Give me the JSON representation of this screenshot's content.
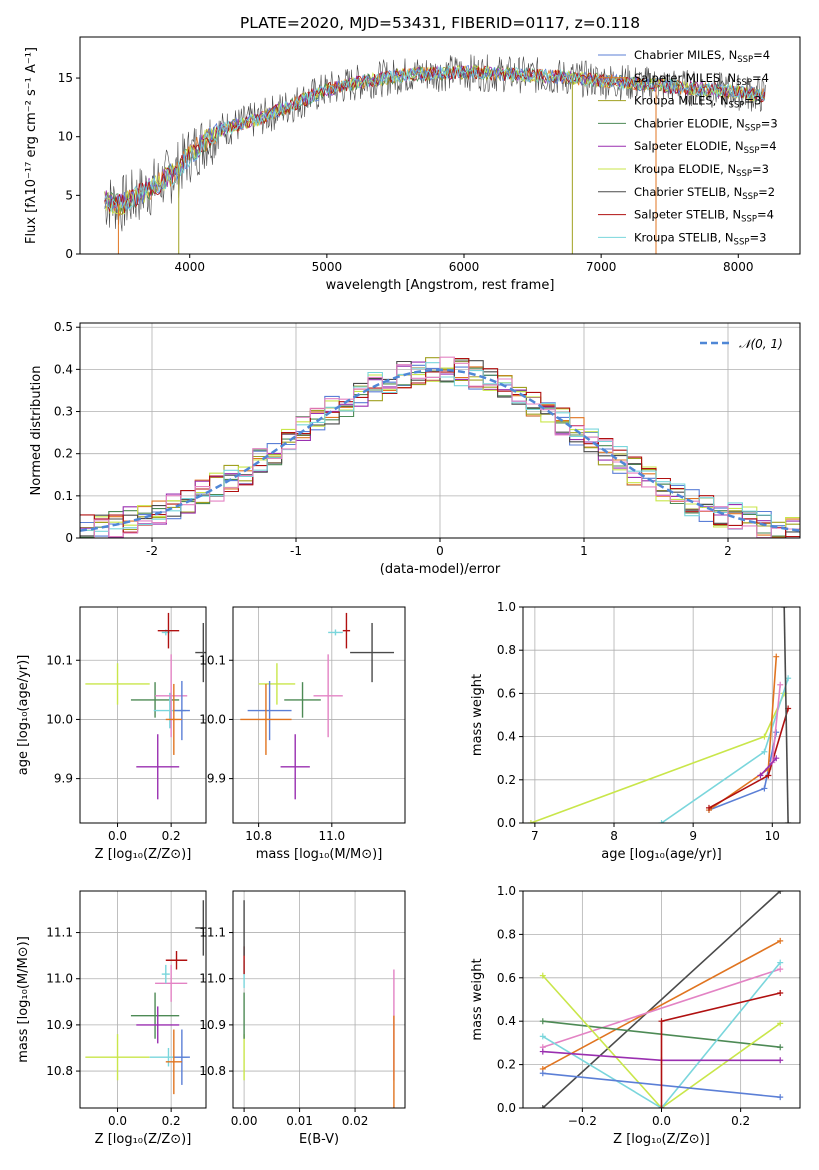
{
  "title": "PLATE=2020, MJD=53431, FIBERID=0117, z=0.118",
  "colors": {
    "Chabrier MILES": "#5b7fd6",
    "Salpeter MILES": "#e07420",
    "Kroupa MILES": "#a0a020",
    "Chabrier ELODIE": "#4d8a55",
    "Salpeter ELODIE": "#9a2fb0",
    "Kroupa ELODIE": "#c9e64a",
    "Chabrier STELIB": "#4a4a4a",
    "Salpeter STELIB": "#b01010",
    "Kroupa STELIB": "#7ad6dc",
    "pink": "#e383c4",
    "gauss": "#4f87d6"
  },
  "legend_spectrum": [
    {
      "key": "Chabrier MILES",
      "label": "Chabrier MILES, N",
      "n": "=4"
    },
    {
      "key": "Salpeter MILES",
      "label": "Salpeter MILES, N",
      "n": "=4"
    },
    {
      "key": "Kroupa MILES",
      "label": "Kroupa MILES, N",
      "n": "=3"
    },
    {
      "key": "Chabrier ELODIE",
      "label": "Chabrier ELODIE, N",
      "n": "=3"
    },
    {
      "key": "Salpeter ELODIE",
      "label": "Salpeter ELODIE, N",
      "n": "=4"
    },
    {
      "key": "Kroupa ELODIE",
      "label": "Kroupa ELODIE, N",
      "n": "=3"
    },
    {
      "key": "Chabrier STELIB",
      "label": "Chabrier STELIB, N",
      "n": "=2"
    },
    {
      "key": "Salpeter STELIB",
      "label": "Salpeter STELIB, N",
      "n": "=4"
    },
    {
      "key": "Kroupa STELIB",
      "label": "Kroupa STELIB, N",
      "n": "=3"
    }
  ],
  "legend_sub": "SSP",
  "chart_data": [
    {
      "type": "line",
      "ylabel": "Flux [fλ10⁻¹⁷ erg cm⁻² s⁻¹ A⁻¹]",
      "xlabel": "wavelength [Angstrom, rest frame]",
      "xlim": [
        3200,
        8450
      ],
      "ylim": [
        0,
        18.5
      ],
      "xticks": [
        4000,
        5000,
        6000,
        7000,
        8000
      ],
      "yticks": [
        0,
        5,
        10,
        15
      ],
      "continuum": [
        [
          3380,
          4.5
        ],
        [
          3500,
          4.2
        ],
        [
          3700,
          5.5
        ],
        [
          3900,
          7
        ],
        [
          4000,
          8.5
        ],
        [
          4200,
          10.5
        ],
        [
          4500,
          11.5
        ],
        [
          4700,
          12.5
        ],
        [
          5000,
          14
        ],
        [
          5300,
          14.8
        ],
        [
          5600,
          15.3
        ],
        [
          6000,
          15.5
        ],
        [
          6400,
          15.3
        ],
        [
          6800,
          15
        ],
        [
          7200,
          14.6
        ],
        [
          7600,
          14.2
        ],
        [
          8000,
          13.8
        ],
        [
          8200,
          13.5
        ]
      ]
    },
    {
      "type": "line",
      "ylabel": "Normed distribution",
      "xlabel": "(data-model)/error",
      "xlim": [
        -2.5,
        2.5
      ],
      "ylim": [
        0,
        0.51
      ],
      "xticks": [
        -2,
        -1,
        0,
        1,
        2
      ],
      "yticks": [
        0,
        0.1,
        0.2,
        0.3,
        0.4,
        0.5
      ],
      "legend": "𝒩(0, 1)"
    },
    {
      "type": "scatter",
      "ylabel": "age  [log₁₀(age/yr)]",
      "xlabel": "Z [log₁₀(Z/Z⊙)]",
      "xlim": [
        -0.14,
        0.33
      ],
      "ylim": [
        9.825,
        10.19
      ],
      "xticks": [
        0,
        0.2
      ],
      "xticklabels": [
        "0.0",
        "0.2"
      ],
      "yticks": [
        9.9,
        10,
        10.1
      ],
      "yticklabels": [
        "9.9",
        "10.0",
        "10.1"
      ],
      "points": [
        {
          "key": "Kroupa ELODIE",
          "x": 0,
          "xe": 0.12,
          "y": 10.06,
          "ye": 0.035
        },
        {
          "key": "Chabrier ELODIE",
          "x": 0.14,
          "xe": 0.09,
          "y": 10.033,
          "ye": 0.03
        },
        {
          "key": "Salpeter ELODIE",
          "x": 0.15,
          "xe": 0.08,
          "y": 9.92,
          "ye": 0.055
        },
        {
          "key": "Kroupa STELIB",
          "x": 0.195,
          "xe": 0.06,
          "y": 10.015,
          "ye": 0.03
        },
        {
          "key": "pink",
          "x": 0.2,
          "xe": 0.06,
          "y": 10.04,
          "ye": 0.07
        },
        {
          "key": "Chabrier MILES",
          "x": 0.24,
          "xe": 0.03,
          "y": 10.015,
          "ye": 0.05
        },
        {
          "key": "Salpeter MILES",
          "x": 0.21,
          "xe": 0.03,
          "y": 10.0,
          "ye": 0.06
        },
        {
          "key": "Kroupa STELIB",
          "x": 0.18,
          "xe": 0.015,
          "y": 10.147,
          "ye": 0.005
        },
        {
          "key": "Salpeter STELIB",
          "x": 0.19,
          "xe": 0.04,
          "y": 10.15,
          "ye": 0.03
        },
        {
          "key": "Chabrier STELIB",
          "x": 0.32,
          "xe": 0.03,
          "y": 10.113,
          "ye": 0.05
        }
      ]
    },
    {
      "type": "scatter",
      "xlabel": "mass [log₁₀(M/M⊙)]",
      "xlim": [
        10.73,
        11.2
      ],
      "ylim": [
        9.825,
        10.19
      ],
      "xticks": [
        10.8,
        11
      ],
      "xticklabels": [
        "10.8",
        "11.0"
      ],
      "yticks": [
        9.9,
        10,
        10.1
      ],
      "yticklabels": [
        "9.9",
        "10.0",
        "10.1"
      ],
      "points": [
        {
          "key": "Kroupa ELODIE",
          "x": 10.85,
          "xe": 0.05,
          "y": 10.06,
          "ye": 0.035
        },
        {
          "key": "Chabrier ELODIE",
          "x": 10.92,
          "xe": 0.05,
          "y": 10.033,
          "ye": 0.03
        },
        {
          "key": "Salpeter ELODIE",
          "x": 10.9,
          "xe": 0.04,
          "y": 9.92,
          "ye": 0.055
        },
        {
          "key": "Chabrier MILES",
          "x": 10.83,
          "xe": 0.06,
          "y": 10.015,
          "ye": 0.05
        },
        {
          "key": "Salpeter MILES",
          "x": 10.82,
          "xe": 0.07,
          "y": 10.0,
          "ye": 0.06
        },
        {
          "key": "pink",
          "x": 10.99,
          "xe": 0.04,
          "y": 10.04,
          "ye": 0.07
        },
        {
          "key": "Kroupa STELIB",
          "x": 11.01,
          "xe": 0.02,
          "y": 10.147,
          "ye": 0.005
        },
        {
          "key": "Salpeter STELIB",
          "x": 11.04,
          "xe": 0.01,
          "y": 10.15,
          "ye": 0.03
        },
        {
          "key": "Chabrier STELIB",
          "x": 11.11,
          "xe": 0.06,
          "y": 10.113,
          "ye": 0.05
        }
      ]
    },
    {
      "type": "line",
      "ylabel": "mass weight",
      "xlabel": "age  [log₁₀(age/yr)]",
      "xlim": [
        6.85,
        10.35
      ],
      "ylim": [
        0,
        1
      ],
      "xticks": [
        7,
        8,
        9,
        10
      ],
      "yticks": [
        0,
        0.2,
        0.4,
        0.6,
        0.8,
        1
      ],
      "yticklabels": [
        "0.0",
        "0.2",
        "0.4",
        "0.6",
        "0.8",
        "1.0"
      ],
      "series": [
        {
          "key": "Kroupa ELODIE",
          "pts": [
            [
              6.95,
              0
            ],
            [
              9.9,
              0.4
            ],
            [
              10.15,
              0.6
            ]
          ]
        },
        {
          "key": "Kroupa STELIB",
          "pts": [
            [
              8.6,
              0
            ],
            [
              9.9,
              0.33
            ],
            [
              10.2,
              0.67
            ]
          ]
        },
        {
          "key": "Chabrier MILES",
          "pts": [
            [
              9.2,
              0.06
            ],
            [
              9.9,
              0.16
            ],
            [
              10.05,
              0.42
            ]
          ]
        },
        {
          "key": "Salpeter MILES",
          "pts": [
            [
              9.2,
              0.06
            ],
            [
              9.95,
              0.25
            ],
            [
              10.05,
              0.77
            ]
          ]
        },
        {
          "key": "Salpeter STELIB",
          "pts": [
            [
              9.2,
              0.07
            ],
            [
              9.95,
              0.22
            ],
            [
              10.2,
              0.53
            ]
          ]
        },
        {
          "key": "pink",
          "pts": [
            [
              10.0,
              0.28
            ],
            [
              10.1,
              0.64
            ]
          ]
        },
        {
          "key": "Salpeter ELODIE",
          "pts": [
            [
              9.85,
              0.22
            ],
            [
              10.05,
              0.3
            ]
          ]
        },
        {
          "key": "Chabrier STELIB",
          "pts": [
            [
              10.15,
              1.0
            ],
            [
              10.2,
              0
            ]
          ]
        }
      ]
    },
    {
      "type": "scatter",
      "ylabel": "mass [log₁₀(M/M⊙)]",
      "xlabel": "Z [log₁₀(Z/Z⊙)]",
      "xlim": [
        -0.14,
        0.33
      ],
      "ylim": [
        10.72,
        11.19
      ],
      "xticks": [
        0,
        0.2
      ],
      "xticklabels": [
        "0.0",
        "0.2"
      ],
      "yticks": [
        10.8,
        10.9,
        11,
        11.1
      ],
      "yticklabels": [
        "10.8",
        "10.9",
        "11.0",
        "11.1"
      ],
      "points": [
        {
          "key": "Kroupa ELODIE",
          "x": 0,
          "xe": 0.12,
          "y": 10.83,
          "ye": 0.05
        },
        {
          "key": "Chabrier ELODIE",
          "x": 0.14,
          "xe": 0.09,
          "y": 10.92,
          "ye": 0.05
        },
        {
          "key": "Salpeter ELODIE",
          "x": 0.15,
          "xe": 0.08,
          "y": 10.9,
          "ye": 0.04
        },
        {
          "key": "Kroupa STELIB",
          "x": 0.19,
          "xe": 0.07,
          "y": 10.83,
          "ye": 0.02
        },
        {
          "key": "pink",
          "x": 0.2,
          "xe": 0.06,
          "y": 10.99,
          "ye": 0.04
        },
        {
          "key": "Chabrier MILES",
          "x": 0.24,
          "xe": 0.03,
          "y": 10.83,
          "ye": 0.06
        },
        {
          "key": "Salpeter MILES",
          "x": 0.21,
          "xe": 0.03,
          "y": 10.82,
          "ye": 0.07
        },
        {
          "key": "Kroupa STELIB",
          "x": 0.18,
          "xe": 0.015,
          "y": 11.01,
          "ye": 0.02
        },
        {
          "key": "Salpeter STELIB",
          "x": 0.22,
          "xe": 0.04,
          "y": 11.04,
          "ye": 0.02
        },
        {
          "key": "Chabrier STELIB",
          "x": 0.32,
          "xe": 0.03,
          "y": 11.11,
          "ye": 0.06
        }
      ]
    },
    {
      "type": "scatter",
      "xlabel": "E(B-V)",
      "xlim": [
        -0.002,
        0.029
      ],
      "ylim": [
        10.72,
        11.19
      ],
      "xticks": [
        0,
        0.01,
        0.02
      ],
      "xticklabels": [
        "0.00",
        "0.01",
        "0.02"
      ],
      "yticks": [
        10.8,
        10.9,
        11,
        11.1
      ],
      "yticklabels": [
        "10.8",
        "10.9",
        "11.0",
        "11.1"
      ],
      "points": [
        {
          "key": "Kroupa ELODIE",
          "x": 0,
          "xe": 0,
          "y": 10.83,
          "ye": 0.05
        },
        {
          "key": "Chabrier ELODIE",
          "x": 0,
          "xe": 0,
          "y": 10.92,
          "ye": 0.05
        },
        {
          "key": "Kroupa STELIB",
          "x": 0,
          "xe": 0,
          "y": 11.01,
          "ye": 0.03
        },
        {
          "key": "Salpeter STELIB",
          "x": 0,
          "xe": 0,
          "y": 11.04,
          "ye": 0.03
        },
        {
          "key": "Chabrier STELIB",
          "x": 0,
          "xe": 0,
          "y": 11.11,
          "ye": 0.06
        },
        {
          "key": "pink",
          "x": 0.027,
          "xe": 0,
          "y": 10.9,
          "ye": 0.12
        },
        {
          "key": "Salpeter MILES",
          "x": 0.027,
          "xe": 0,
          "y": 10.82,
          "ye": 0.1
        }
      ]
    },
    {
      "type": "line",
      "ylabel": "mass weight",
      "xlabel": "Z [log₁₀(Z/Z⊙)]",
      "xlim": [
        -0.35,
        0.35
      ],
      "ylim": [
        0,
        1
      ],
      "xticks": [
        -0.2,
        0,
        0.2
      ],
      "xticklabels": [
        "−0.2",
        "0.0",
        "0.2"
      ],
      "yticks": [
        0,
        0.2,
        0.4,
        0.6,
        0.8,
        1
      ],
      "yticklabels": [
        "0.0",
        "0.2",
        "0.4",
        "0.6",
        "0.8",
        "1.0"
      ],
      "series": [
        {
          "key": "Chabrier STELIB",
          "pts": [
            [
              -0.3,
              0
            ],
            [
              0.3,
              1
            ]
          ]
        },
        {
          "key": "Salpeter MILES",
          "pts": [
            [
              -0.3,
              0.18
            ],
            [
              0.3,
              0.77
            ]
          ]
        },
        {
          "key": "pink",
          "pts": [
            [
              -0.3,
              0.28
            ],
            [
              0.3,
              0.64
            ]
          ]
        },
        {
          "key": "Chabrier ELODIE",
          "pts": [
            [
              -0.3,
              0.4
            ],
            [
              0.3,
              0.28
            ]
          ]
        },
        {
          "key": "Kroupa ELODIE",
          "pts": [
            [
              -0.3,
              0.61
            ],
            [
              0,
              0
            ],
            [
              0.3,
              0.39
            ]
          ]
        },
        {
          "key": "Kroupa STELIB",
          "pts": [
            [
              -0.3,
              0.33
            ],
            [
              0,
              0
            ],
            [
              0.3,
              0.67
            ]
          ]
        },
        {
          "key": "Salpeter ELODIE",
          "pts": [
            [
              -0.3,
              0.26
            ],
            [
              0,
              0.22
            ],
            [
              0.3,
              0.22
            ]
          ]
        },
        {
          "key": "Chabrier MILES",
          "pts": [
            [
              -0.3,
              0.16
            ],
            [
              0.3,
              0.05
            ]
          ]
        },
        {
          "key": "Salpeter STELIB",
          "pts": [
            [
              0,
              0
            ],
            [
              0,
              0.4
            ],
            [
              0.3,
              0.53
            ]
          ]
        }
      ]
    }
  ]
}
